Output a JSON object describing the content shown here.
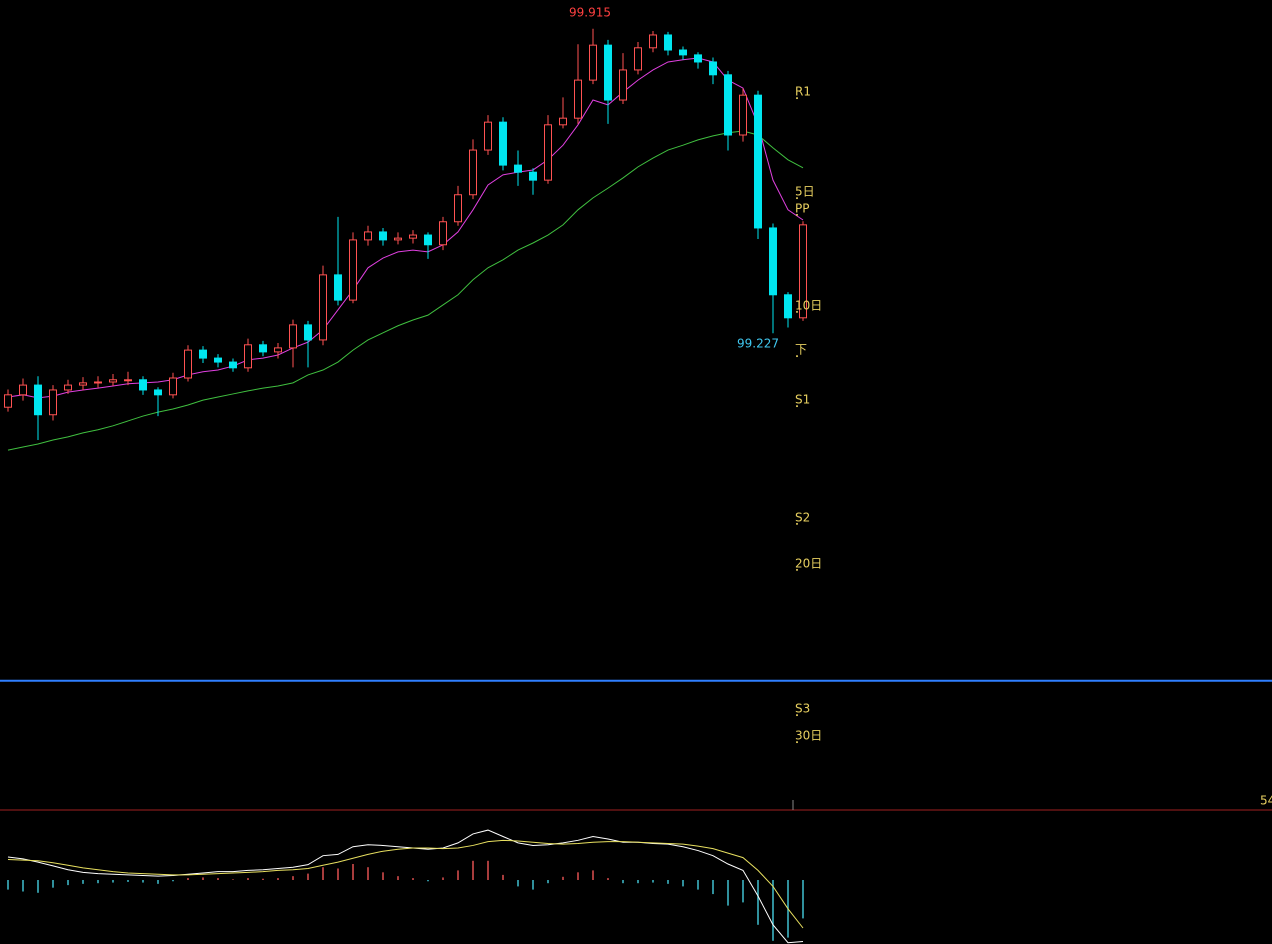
{
  "chart_data": [
    {
      "type": "candlestick",
      "ylim": [
        98.15,
        99.98
      ],
      "up_color": "#ff5252",
      "down_color": "#00e6f0",
      "open": [
        99.06,
        99.088,
        99.11,
        99.043,
        99.099,
        99.11,
        99.115,
        99.117,
        99.122,
        99.122,
        99.099,
        99.088,
        99.126,
        99.189,
        99.171,
        99.162,
        99.149,
        99.201,
        99.185,
        99.194,
        99.246,
        99.212,
        99.359,
        99.302,
        99.438,
        99.456,
        99.438,
        99.442,
        99.449,
        99.427,
        99.479,
        99.54,
        99.641,
        99.704,
        99.607,
        99.591,
        99.573,
        99.698,
        99.713,
        99.799,
        99.878,
        99.754,
        99.822,
        99.872,
        99.901,
        99.867,
        99.856,
        99.84,
        99.811,
        99.675,
        99.765,
        99.465,
        99.314,
        99.262
      ],
      "high": [
        99.1,
        99.125,
        99.13,
        99.11,
        99.122,
        99.128,
        99.13,
        99.135,
        99.14,
        99.13,
        99.105,
        99.138,
        99.2,
        99.198,
        99.18,
        99.17,
        99.215,
        99.21,
        99.205,
        99.258,
        99.255,
        99.38,
        99.49,
        99.455,
        99.47,
        99.465,
        99.455,
        99.46,
        99.455,
        99.49,
        99.56,
        99.665,
        99.72,
        99.715,
        99.64,
        99.6,
        99.72,
        99.76,
        99.88,
        99.915,
        99.89,
        99.86,
        99.885,
        99.91,
        99.908,
        99.875,
        99.862,
        99.85,
        99.82,
        99.78,
        99.775,
        99.475,
        99.32,
        99.48
      ],
      "low": [
        99.05,
        99.075,
        98.986,
        99.03,
        99.09,
        99.098,
        99.104,
        99.108,
        99.11,
        99.088,
        99.04,
        99.08,
        99.118,
        99.16,
        99.15,
        99.14,
        99.14,
        99.175,
        99.17,
        99.15,
        99.15,
        99.2,
        99.29,
        99.295,
        99.425,
        99.425,
        99.428,
        99.43,
        99.395,
        99.415,
        99.47,
        99.53,
        99.63,
        99.595,
        99.56,
        99.54,
        99.565,
        99.69,
        99.7,
        99.79,
        99.7,
        99.745,
        99.812,
        99.862,
        99.855,
        99.845,
        99.825,
        99.79,
        99.64,
        99.66,
        99.44,
        99.227,
        99.24,
        99.255
      ],
      "close": [
        99.088,
        99.11,
        99.043,
        99.099,
        99.11,
        99.115,
        99.117,
        99.122,
        99.122,
        99.099,
        99.088,
        99.126,
        99.189,
        99.171,
        99.162,
        99.149,
        99.201,
        99.185,
        99.194,
        99.246,
        99.212,
        99.359,
        99.302,
        99.438,
        99.456,
        99.438,
        99.442,
        99.449,
        99.427,
        99.479,
        99.54,
        99.641,
        99.704,
        99.607,
        99.591,
        99.573,
        99.698,
        99.713,
        99.799,
        99.878,
        99.754,
        99.822,
        99.872,
        99.901,
        99.867,
        99.856,
        99.84,
        99.811,
        99.675,
        99.765,
        99.465,
        99.314,
        99.262,
        99.472
      ],
      "lines": [
        {
          "color": "#e040e0",
          "values": [
            99.083,
            99.088,
            99.081,
            99.085,
            99.094,
            99.099,
            99.103,
            99.108,
            99.113,
            99.115,
            99.117,
            99.122,
            99.133,
            99.14,
            99.144,
            99.153,
            99.167,
            99.171,
            99.178,
            99.194,
            99.207,
            99.235,
            99.28,
            99.325,
            99.375,
            99.397,
            99.411,
            99.415,
            99.411,
            99.427,
            99.456,
            99.506,
            99.562,
            99.585,
            99.591,
            99.596,
            99.619,
            99.652,
            99.698,
            99.754,
            99.743,
            99.772,
            99.799,
            99.822,
            99.84,
            99.845,
            99.849,
            99.84,
            99.799,
            99.781,
            99.698,
            99.573,
            99.506,
            99.483
          ]
        },
        {
          "color": "#40c040",
          "values": [
            98.963,
            98.97,
            98.977,
            98.986,
            98.993,
            99.002,
            99.009,
            99.018,
            99.029,
            99.04,
            99.049,
            99.056,
            99.065,
            99.076,
            99.083,
            99.09,
            99.097,
            99.103,
            99.108,
            99.115,
            99.133,
            99.144,
            99.162,
            99.189,
            99.212,
            99.228,
            99.244,
            99.257,
            99.268,
            99.291,
            99.314,
            99.348,
            99.375,
            99.393,
            99.415,
            99.431,
            99.449,
            99.472,
            99.506,
            99.533,
            99.555,
            99.578,
            99.603,
            99.623,
            99.641,
            99.652,
            99.664,
            99.673,
            99.68,
            99.684,
            99.675,
            99.646,
            99.619,
            99.601
          ]
        }
      ],
      "levels": [
        {
          "label": "R1",
          "value": 99.772
        },
        {
          "label": "5日",
          "value": 99.546
        },
        {
          "label": "PP",
          "value": 99.508
        },
        {
          "label": "10日",
          "value": 99.289
        },
        {
          "label": "下",
          "value": 99.189
        },
        {
          "label": "S1",
          "value": 99.076
        },
        {
          "label": "S2",
          "value": 98.81
        },
        {
          "label": "20日",
          "value": 98.706
        },
        {
          "label": "S3",
          "value": 98.378
        },
        {
          "label": "30日",
          "value": 98.317
        }
      ],
      "hline": {
        "value": 98.442,
        "color": "#2f7fff"
      },
      "annotations": [
        "99.915",
        "99.227"
      ]
    },
    {
      "type": "macd",
      "ylim": [
        -10,
        10
      ],
      "hist": [
        -1.5,
        -1.8,
        -2,
        -1.2,
        -0.8,
        -0.6,
        -0.5,
        -0.4,
        -0.3,
        -0.4,
        -0.6,
        -0.2,
        0.3,
        0.4,
        0.3,
        0.1,
        0.3,
        0.2,
        0.3,
        0.6,
        1.0,
        2.0,
        1.8,
        2.5,
        2.0,
        1.2,
        0.6,
        0.3,
        -0.2,
        0.4,
        1.5,
        3.0,
        3.0,
        0.8,
        -1.0,
        -1.5,
        -0.5,
        0.5,
        1.2,
        1.5,
        0.3,
        -0.5,
        -0.5,
        -0.4,
        -0.6,
        -1.0,
        -1.5,
        -2.2,
        -4,
        -3.5,
        -7,
        -9.5,
        -9,
        -6
      ],
      "dif": {
        "color": "#ffffff",
        "values": [
          3.6,
          3.3,
          2.8,
          2.2,
          1.6,
          1.2,
          1.0,
          0.9,
          0.8,
          0.7,
          0.6,
          0.7,
          0.9,
          1.1,
          1.3,
          1.3,
          1.5,
          1.6,
          1.8,
          2.0,
          2.4,
          3.8,
          4.0,
          5.2,
          5.5,
          5.4,
          5.2,
          5.0,
          4.8,
          5.0,
          5.8,
          7.2,
          7.8,
          6.8,
          5.8,
          5.4,
          5.5,
          5.8,
          6.2,
          6.8,
          6.4,
          5.9,
          5.9,
          5.7,
          5.6,
          5.2,
          4.6,
          3.8,
          2.5,
          1.5,
          -2.5,
          -7,
          -9.8,
          -9.6
        ]
      },
      "dea": {
        "color": "#e8e060",
        "values": [
          3.2,
          3.1,
          3.0,
          2.7,
          2.3,
          1.9,
          1.6,
          1.3,
          1.1,
          1.0,
          0.9,
          0.8,
          0.8,
          0.9,
          1.0,
          1.1,
          1.2,
          1.3,
          1.5,
          1.6,
          1.8,
          2.3,
          2.8,
          3.4,
          4.0,
          4.5,
          4.8,
          5.0,
          5.0,
          4.9,
          5.0,
          5.4,
          6.0,
          6.2,
          6.1,
          5.9,
          5.7,
          5.6,
          5.7,
          5.9,
          6.0,
          6.0,
          5.9,
          5.8,
          5.7,
          5.6,
          5.3,
          4.9,
          4.2,
          3.5,
          1.5,
          -1,
          -4.5,
          -7.5
        ]
      },
      "label": "54"
    }
  ]
}
